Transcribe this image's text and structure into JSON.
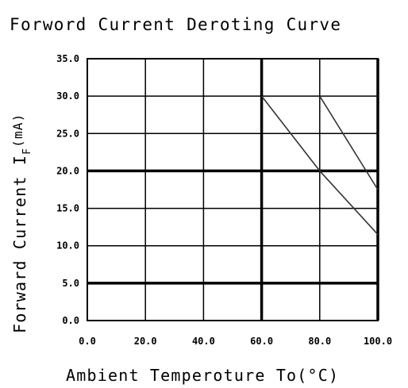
{
  "chart_data": {
    "type": "line",
    "title": "Forword Current Deroting Curve",
    "xlabel": "Ambient Temperoture To(°C)",
    "ylabel_main": "Forward Current I",
    "ylabel_sub": "F",
    "ylabel_unit": "(mA)",
    "xlim": [
      0,
      100
    ],
    "ylim": [
      0,
      35
    ],
    "x_ticks": [
      0,
      20,
      40,
      60,
      80,
      100
    ],
    "x_tick_labels": [
      "0.0",
      "20.0",
      "40.0",
      "60.0",
      "80.0",
      "100.0"
    ],
    "y_ticks": [
      0,
      5,
      10,
      15,
      20,
      25,
      30,
      35
    ],
    "y_tick_labels": [
      "0.0",
      "5.0",
      "10.0",
      "15.0",
      "20.0",
      "25.0",
      "30.0",
      "35.0"
    ],
    "x_major_grid": [
      60,
      100
    ],
    "y_major_grid": [
      5,
      20
    ],
    "grid": true,
    "series": [
      {
        "x": [
          60,
          80,
          100
        ],
        "y": [
          30,
          20,
          11.5
        ]
      },
      {
        "x": [
          80,
          100
        ],
        "y": [
          30,
          17.5
        ]
      }
    ]
  }
}
